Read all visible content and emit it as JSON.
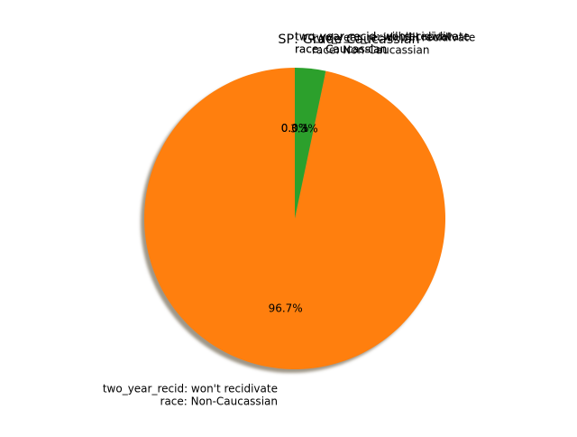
{
  "chart_data": {
    "type": "pie",
    "title": "SP: Grade Caucassian",
    "start_angle_deg": 90,
    "counterclock": true,
    "shadow": true,
    "slices": [
      {
        "label": "two_year_recid: will recidivate\nrace: Caucassian",
        "value": 0.0,
        "pct_label": "0.0%",
        "color": "#1f77b4"
      },
      {
        "label": "two_year_recid: won't recidivate\nrace: Caucassian",
        "value": 0.0,
        "pct_label": "0.0%",
        "color": "#d62728"
      },
      {
        "label": "two_year_recid: won't recidivate\nrace: Non-Caucassian",
        "value": 96.7,
        "pct_label": "96.7%",
        "color": "#ff7f0e"
      },
      {
        "label": "two_year_recid: will recidivate\nrace: Non-Caucassian",
        "value": 3.3,
        "pct_label": "3.3%",
        "color": "#2ca02c"
      }
    ]
  }
}
